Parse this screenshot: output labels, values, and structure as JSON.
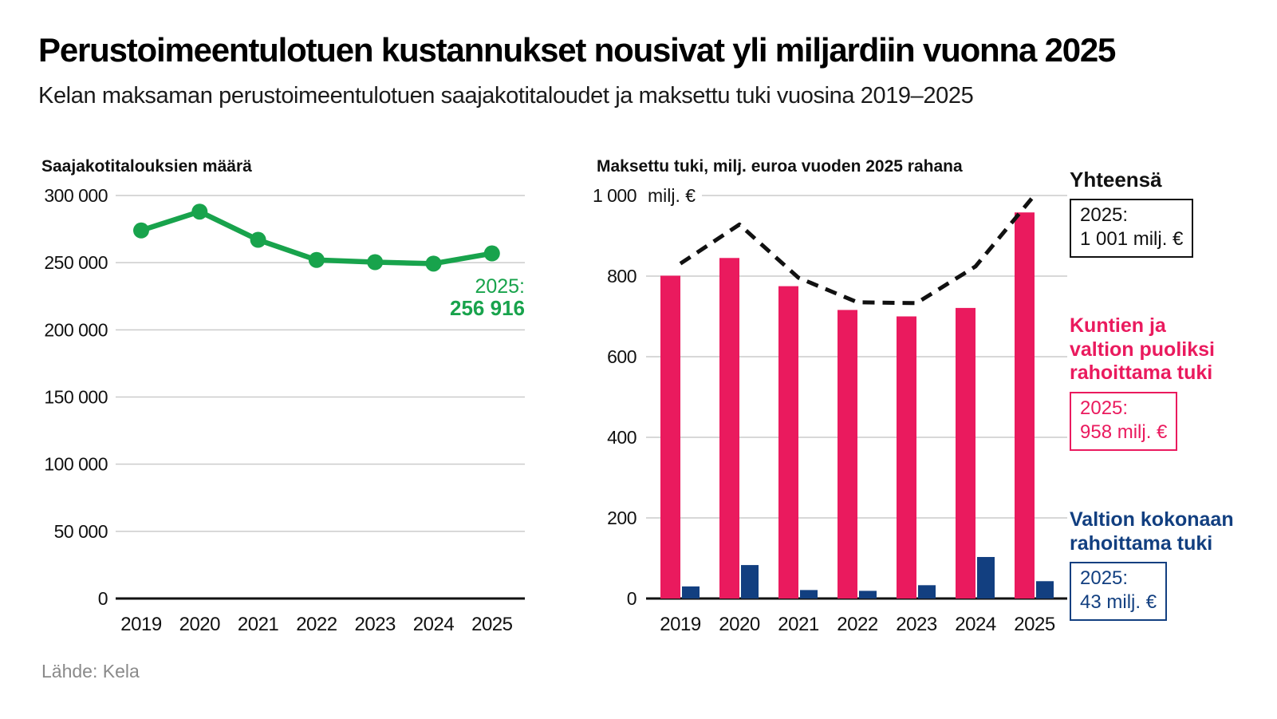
{
  "page": {
    "title": "Perustoimeentulotuen kustannukset nousivat yli miljardiin vuonna 2025",
    "subtitle": "Kelan maksaman perustoimeentulotuen saajakotitaloudet ja maksettu tuki vuosina 2019–2025",
    "source": "Lähde: Kela"
  },
  "colors": {
    "green": "#18a34c",
    "pink": "#ea1a5e",
    "blue": "#123f80",
    "black": "#111111",
    "grid": "#cccccc",
    "gray": "#8a8a8a"
  },
  "chart_data": [
    {
      "id": "households",
      "type": "line",
      "title": "Saajakotitalouksien määrä",
      "categories": [
        "2019",
        "2020",
        "2021",
        "2022",
        "2023",
        "2024",
        "2025"
      ],
      "values": [
        274000,
        288000,
        267000,
        252000,
        250400,
        249300,
        256916
      ],
      "ylim": [
        0,
        300000
      ],
      "ytick_step": 50000,
      "ytick_labels": [
        "0",
        "50 000",
        "100 000",
        "150 000",
        "200 000",
        "250 000",
        "300 000"
      ],
      "grid": true,
      "legend_position": "none",
      "annotation": {
        "label": "2025:",
        "value": "256 916"
      }
    },
    {
      "id": "paid-support",
      "type": "bar",
      "title": "Maksettu tuki, milj. euroa vuoden 2025 rahana",
      "unit_label": "milj. €",
      "categories": [
        "2019",
        "2020",
        "2021",
        "2022",
        "2023",
        "2024",
        "2025"
      ],
      "series": [
        {
          "name": "Kuntien ja valtion puoliksi rahoittama tuki",
          "type": "bar",
          "color": "pink",
          "values": [
            801,
            845,
            775,
            716,
            700,
            721,
            958
          ]
        },
        {
          "name": "Valtion kokonaan rahoittama tuki",
          "type": "bar",
          "color": "blue",
          "values": [
            30,
            83,
            21,
            19,
            33,
            103,
            43
          ]
        },
        {
          "name": "Yhteensä",
          "type": "dashed_line",
          "color": "black",
          "values": [
            831,
            928,
            796,
            735,
            733,
            824,
            1001
          ]
        }
      ],
      "ylim": [
        0,
        1000
      ],
      "ytick_step": 200,
      "ytick_labels": [
        "0",
        "200",
        "400",
        "600",
        "800",
        "1 000"
      ],
      "grid": true,
      "legend_position": "right"
    }
  ],
  "legend": {
    "total": {
      "heading": "Yhteensä",
      "year_label": "2025:",
      "value_label": "1 001 milj. €"
    },
    "municipal": {
      "heading_lines": [
        "Kuntien ja",
        "valtion puoliksi",
        "rahoittama tuki"
      ],
      "year_label": "2025:",
      "value_label": "958 milj. €"
    },
    "state": {
      "heading_lines": [
        "Valtion kokonaan",
        "rahoittama tuki"
      ],
      "year_label": "2025:",
      "value_label": "43 milj. €"
    }
  }
}
